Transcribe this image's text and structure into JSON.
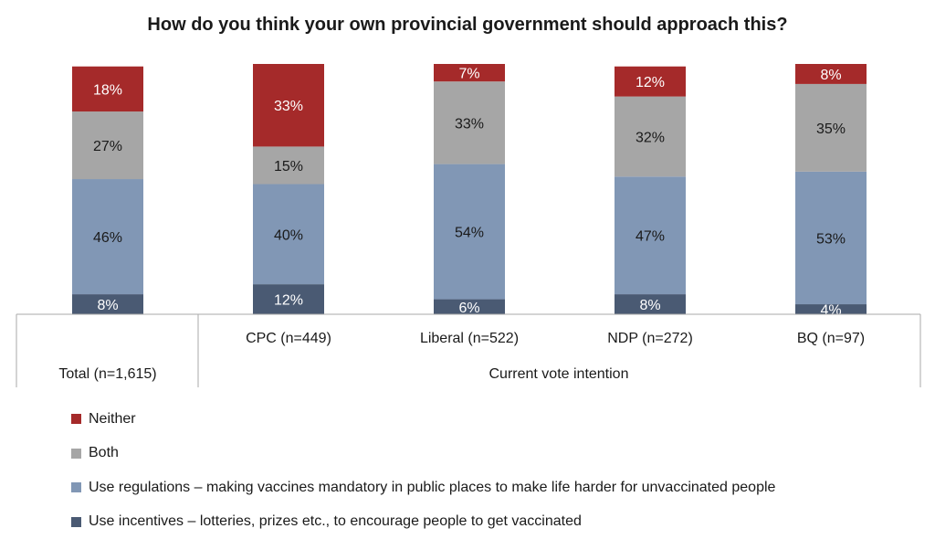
{
  "title": "How do you think your own provincial government should approach this?",
  "colors": {
    "neither": "#a52a2a",
    "both": "#a6a6a6",
    "regulations": "#8197b5",
    "incentives": "#4a5a73",
    "axis": "#aaaaaa",
    "text_dark": "#1a1a1a",
    "text_light": "#ffffff"
  },
  "chart_data": {
    "type": "bar",
    "stacked": true,
    "title": "How do you think your own provincial government should approach this?",
    "categories": [
      "Total (n=1,615)",
      "CPC (n=449)",
      "Liberal (n=522)",
      "NDP (n=272)",
      "BQ (n=97)"
    ],
    "group_label": "Current vote intention",
    "value_suffix": "%",
    "series": [
      {
        "name": "Use incentives – lotteries, prizes etc., to encourage people to get vaccinated",
        "key": "incentives",
        "values": [
          8,
          12,
          6,
          8,
          4
        ]
      },
      {
        "name": "Use regulations – making vaccines mandatory in public places to make life harder for unvaccinated people",
        "key": "regulations",
        "values": [
          46,
          40,
          54,
          47,
          53
        ]
      },
      {
        "name": "Both",
        "key": "both",
        "values": [
          27,
          15,
          33,
          32,
          35
        ]
      },
      {
        "name": "Neither",
        "key": "neither",
        "values": [
          18,
          33,
          7,
          12,
          8
        ]
      }
    ],
    "legend_order": [
      "neither",
      "both",
      "regulations",
      "incentives"
    ],
    "legend_position": "bottom-left"
  }
}
